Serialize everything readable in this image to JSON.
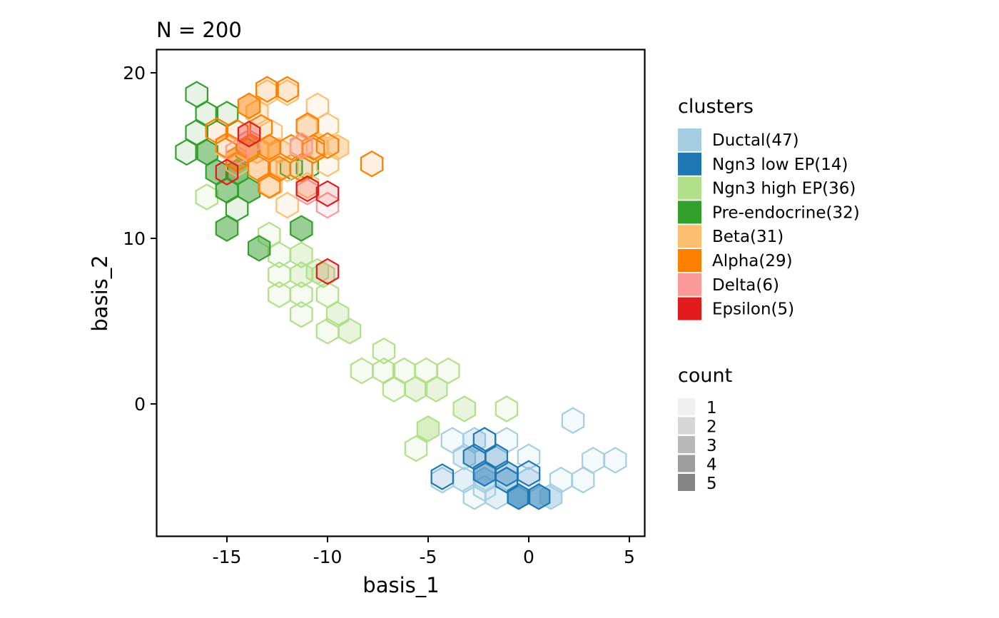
{
  "chart_data": {
    "type": "hexbin",
    "title": "N = 200",
    "xlabel": "basis_1",
    "ylabel": "basis_2",
    "xlim": [
      -18.5,
      5.8
    ],
    "ylim": [
      -8,
      21.4
    ],
    "x_ticks": [
      -15,
      -10,
      -5,
      0,
      5
    ],
    "x_tick_labels": [
      "-15",
      "-10",
      "-5",
      "0",
      "5"
    ],
    "y_ticks": [
      0,
      10,
      20
    ],
    "y_tick_labels": [
      "0",
      "10",
      "20"
    ],
    "grid": false,
    "legend_position": "right",
    "legend_clusters": {
      "title": "clusters",
      "items": [
        {
          "label": "Ductal(47)",
          "color": "#A6CEE3"
        },
        {
          "label": "Ngn3 low EP(14)",
          "color": "#1F78B4"
        },
        {
          "label": "Ngn3 high EP(36)",
          "color": "#B2DF8A"
        },
        {
          "label": "Pre-endocrine(32)",
          "color": "#33A02C"
        },
        {
          "label": "Beta(31)",
          "color": "#FDBF6F"
        },
        {
          "label": "Alpha(29)",
          "color": "#FF7F00"
        },
        {
          "label": "Delta(6)",
          "color": "#FB9A99"
        },
        {
          "label": "Epsilon(5)",
          "color": "#E31A1C"
        }
      ]
    },
    "legend_count": {
      "title": "count",
      "items": [
        {
          "label": "1",
          "color": "#F0F0F0"
        },
        {
          "label": "2",
          "color": "#D6D6D6"
        },
        {
          "label": "3",
          "color": "#B8B8B8"
        },
        {
          "label": "4",
          "color": "#9D9D9D"
        },
        {
          "label": "5",
          "color": "#858585"
        }
      ]
    },
    "series": [
      {
        "name": "Ductal(47)",
        "color": "#A6CEE3",
        "bins": [
          [
            -3.8,
            -2.2,
            1
          ],
          [
            -3.2,
            -3.2,
            2
          ],
          [
            -2.7,
            -2.2,
            2
          ],
          [
            -1.1,
            -2.2,
            1
          ],
          [
            -0.0,
            -3.2,
            1
          ],
          [
            -4.3,
            -4.6,
            1
          ],
          [
            -3.2,
            -4.6,
            2
          ],
          [
            -2.2,
            -4.6,
            3
          ],
          [
            -1.1,
            -4.6,
            3
          ],
          [
            0.0,
            -4.6,
            2
          ],
          [
            1.6,
            -4.6,
            1
          ],
          [
            -2.7,
            -5.6,
            1
          ],
          [
            -1.6,
            -5.6,
            2
          ],
          [
            -0.5,
            -5.6,
            2
          ],
          [
            0.5,
            -5.6,
            2
          ],
          [
            1.1,
            -5.6,
            4
          ],
          [
            -2.2,
            -5.1,
            1
          ],
          [
            2.7,
            -4.6,
            1
          ],
          [
            3.2,
            -3.4,
            1
          ],
          [
            4.3,
            -3.4,
            1
          ],
          [
            2.2,
            -1.0,
            1
          ]
        ]
      },
      {
        "name": "Ngn3 low EP(14)",
        "color": "#1F78B4",
        "bins": [
          [
            -2.2,
            -2.2,
            1
          ],
          [
            -2.7,
            -3.2,
            2
          ],
          [
            -1.6,
            -3.2,
            2
          ],
          [
            -2.2,
            -4.2,
            3
          ],
          [
            -1.1,
            -4.2,
            2
          ],
          [
            0.0,
            -4.2,
            1
          ],
          [
            -4.3,
            -4.4,
            1
          ],
          [
            -0.5,
            -5.6,
            4
          ],
          [
            0.5,
            -5.6,
            3
          ],
          [
            -1.1,
            -4.6,
            1
          ]
        ]
      },
      {
        "name": "Ngn3 high EP(36)",
        "color": "#B2DF8A",
        "bins": [
          [
            -12.9,
            10.2,
            1
          ],
          [
            -12.4,
            9.0,
            1
          ],
          [
            -11.3,
            9.0,
            2
          ],
          [
            -12.4,
            7.8,
            1
          ],
          [
            -11.3,
            7.8,
            2
          ],
          [
            -10.2,
            7.8,
            2
          ],
          [
            -10.0,
            6.6,
            1
          ],
          [
            -11.3,
            6.6,
            1
          ],
          [
            -12.4,
            6.6,
            1
          ],
          [
            -11.3,
            5.4,
            1
          ],
          [
            -9.5,
            5.4,
            2
          ],
          [
            -10.0,
            4.4,
            1
          ],
          [
            -8.9,
            4.4,
            2
          ],
          [
            -7.2,
            3.2,
            1
          ],
          [
            -8.3,
            2.0,
            1
          ],
          [
            -7.2,
            2.0,
            1
          ],
          [
            -6.2,
            2.0,
            1
          ],
          [
            -5.1,
            2.0,
            1
          ],
          [
            -4.0,
            2.0,
            1
          ],
          [
            -6.7,
            0.9,
            1
          ],
          [
            -5.6,
            0.9,
            2
          ],
          [
            -4.6,
            0.9,
            2
          ],
          [
            -3.2,
            -0.3,
            2
          ],
          [
            -1.1,
            -0.3,
            1
          ],
          [
            -5.0,
            -1.5,
            3
          ],
          [
            -5.6,
            -2.7,
            1
          ],
          [
            -16.0,
            12.5,
            1
          ],
          [
            -10.5,
            8.0,
            2
          ]
        ]
      },
      {
        "name": "Pre-endocrine(32)",
        "color": "#33A02C",
        "bins": [
          [
            -16.5,
            18.7,
            1
          ],
          [
            -16.0,
            17.5,
            1
          ],
          [
            -15.0,
            17.5,
            1
          ],
          [
            -16.5,
            16.4,
            1
          ],
          [
            -17.0,
            15.2,
            1
          ],
          [
            -16.0,
            15.2,
            3
          ],
          [
            -15.5,
            14.0,
            3
          ],
          [
            -14.5,
            14.0,
            4
          ],
          [
            -15.0,
            12.9,
            3
          ],
          [
            -13.9,
            12.9,
            3
          ],
          [
            -14.5,
            11.8,
            1
          ],
          [
            -15.0,
            10.6,
            3
          ],
          [
            -13.4,
            9.4,
            3
          ],
          [
            -11.3,
            10.6,
            3
          ],
          [
            -11.8,
            14.3,
            1
          ],
          [
            -11.0,
            14.3,
            1
          ],
          [
            -14.0,
            15.3,
            1
          ]
        ]
      },
      {
        "name": "Beta(31)",
        "color": "#FDBF6F",
        "bins": [
          [
            -13.0,
            18.8,
            1
          ],
          [
            -12.0,
            18.8,
            1
          ],
          [
            -10.5,
            18.0,
            1
          ],
          [
            -10.0,
            16.8,
            1
          ],
          [
            -13.5,
            17.6,
            2
          ],
          [
            -11.0,
            16.7,
            2
          ],
          [
            -12.8,
            16.4,
            1
          ],
          [
            -13.5,
            15.3,
            1
          ],
          [
            -12.4,
            15.3,
            2
          ],
          [
            -11.3,
            15.5,
            1
          ],
          [
            -10.5,
            15.5,
            1
          ],
          [
            -9.5,
            15.5,
            3
          ],
          [
            -10.0,
            14.5,
            1
          ],
          [
            -12.0,
            14.2,
            1
          ],
          [
            -12.8,
            13.2,
            2
          ],
          [
            -12.0,
            12.0,
            1
          ],
          [
            -11.0,
            13.2,
            2
          ],
          [
            -14.5,
            14.5,
            1
          ],
          [
            -15.0,
            15.5,
            1
          ]
        ]
      },
      {
        "name": "Alpha(29)",
        "color": "#FF7F00",
        "bins": [
          [
            -13.0,
            19.0,
            1
          ],
          [
            -12.0,
            19.0,
            1
          ],
          [
            -13.9,
            18.0,
            3
          ],
          [
            -13.3,
            16.7,
            1
          ],
          [
            -11.0,
            16.8,
            1
          ],
          [
            -15.5,
            16.5,
            1
          ],
          [
            -14.5,
            16.4,
            1
          ],
          [
            -13.9,
            15.5,
            4
          ],
          [
            -12.9,
            15.5,
            3
          ],
          [
            -11.8,
            15.5,
            1
          ],
          [
            -10.7,
            15.5,
            1
          ],
          [
            -13.4,
            14.2,
            2
          ],
          [
            -12.4,
            14.2,
            2
          ],
          [
            -11.3,
            14.2,
            1
          ],
          [
            -12.9,
            13.2,
            1
          ],
          [
            -10.7,
            15.3,
            1
          ],
          [
            -10.0,
            15.6,
            1
          ],
          [
            -7.8,
            14.5,
            1
          ],
          [
            -15.0,
            15.6,
            1
          ],
          [
            -14.5,
            14.8,
            3
          ]
        ]
      },
      {
        "name": "Delta(6)",
        "color": "#FB9A99",
        "bins": [
          [
            -11.3,
            15.6,
            2
          ],
          [
            -11.0,
            12.8,
            1
          ],
          [
            -10.0,
            12.0,
            1
          ],
          [
            -14.5,
            15.2,
            1
          ],
          [
            -13.9,
            15.8,
            2
          ]
        ]
      },
      {
        "name": "Epsilon(5)",
        "color": "#E31A1C",
        "bins": [
          [
            -13.9,
            16.3,
            2
          ],
          [
            -15.0,
            14.0,
            1
          ],
          [
            -11.0,
            13.0,
            1
          ],
          [
            -10.0,
            12.7,
            1
          ],
          [
            -10.0,
            8.0,
            1
          ]
        ]
      }
    ]
  }
}
